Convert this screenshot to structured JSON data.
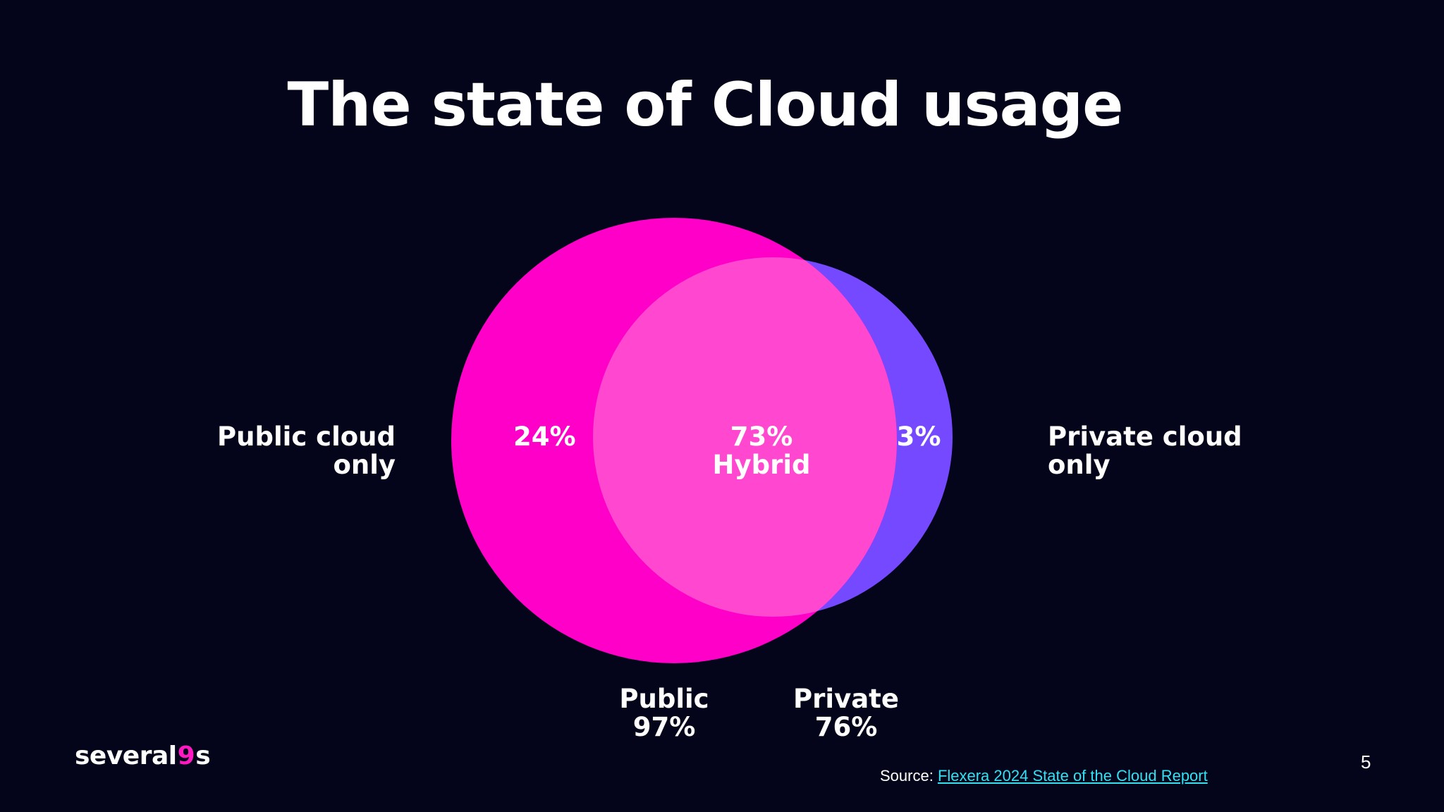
{
  "slide": {
    "title": "The state of Cloud usage",
    "page_number": "5"
  },
  "diagram": {
    "public_only_label": [
      "Public cloud",
      "only"
    ],
    "private_only_label": [
      "Private cloud",
      "only"
    ],
    "public_only_percent": "24%",
    "hybrid_percent": "73%",
    "hybrid_label": "Hybrid",
    "private_only_percent": "3%",
    "public_total_label": "Public",
    "public_total_percent": "97%",
    "private_total_label": "Private",
    "private_total_percent": "76%",
    "colors": {
      "public": "#ff00c8",
      "private": "#7449ff",
      "overlap": "#ff47d0",
      "background": "#04051a"
    }
  },
  "footer": {
    "logo_parts": [
      "several",
      "9",
      "s"
    ],
    "source_prefix": "Source: ",
    "source_link_text": "Flexera 2024 State of the Cloud Report"
  }
}
